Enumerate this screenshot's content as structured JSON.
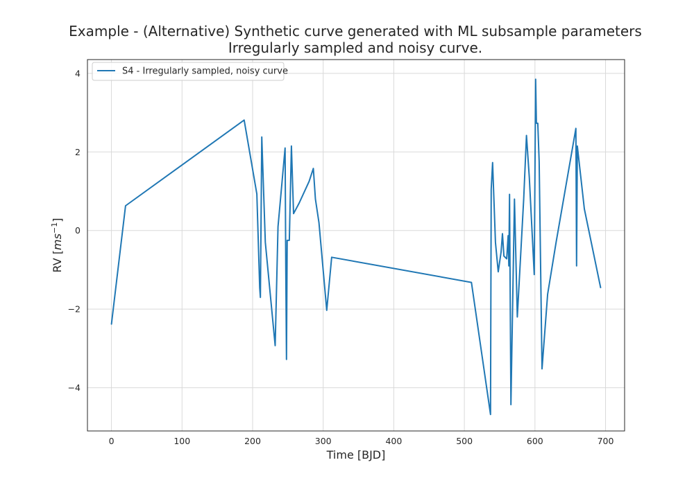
{
  "chart_data": {
    "type": "line",
    "title_line1": "Example - (Alternative) Synthetic curve generated with ML subsample parameters",
    "title_line2": "Irregularly sampled and noisy curve.",
    "xlabel": "Time [BJD]",
    "ylabel_prefix": "RV [",
    "ylabel_unit": "ms",
    "ylabel_exp": "−1",
    "ylabel_suffix": "]",
    "xlim": [
      -34,
      727
    ],
    "ylim": [
      -5.1,
      4.35
    ],
    "xticks": [
      0,
      100,
      200,
      300,
      400,
      500,
      600,
      700
    ],
    "xtick_labels": [
      "0",
      "100",
      "200",
      "300",
      "400",
      "500",
      "600",
      "700"
    ],
    "yticks": [
      -4,
      -2,
      0,
      2,
      4
    ],
    "ytick_labels": [
      "−4",
      "−2",
      "0",
      "2",
      "4"
    ],
    "grid": true,
    "legend_position": "top-left",
    "series": [
      {
        "name": "S4 - Irregularly sampled, noisy curve",
        "color": "#1f77b4",
        "x": [
          0,
          20,
          188,
          206,
          210,
          211,
          213,
          218,
          232,
          236,
          246,
          247,
          248,
          249,
          252,
          255,
          258,
          266,
          280,
          286,
          289,
          294,
          305,
          312,
          510,
          537,
          538,
          540,
          544,
          548,
          552,
          554,
          556,
          560,
          562,
          563,
          564,
          566,
          571,
          575,
          584,
          588,
          592,
          599,
          601,
          602,
          604,
          606,
          610,
          618,
          630,
          658,
          659,
          660,
          670,
          693
        ],
        "y": [
          -2.38,
          0.63,
          2.81,
          0.93,
          -1.45,
          -1.7,
          2.38,
          -0.3,
          -2.93,
          0.1,
          2.1,
          -1.0,
          -3.28,
          -0.25,
          -0.25,
          2.15,
          0.43,
          0.7,
          1.25,
          1.58,
          0.8,
          0.2,
          -2.03,
          -0.68,
          -1.32,
          -4.68,
          1.05,
          1.73,
          -0.3,
          -1.05,
          -0.55,
          -0.08,
          -0.65,
          -0.72,
          -0.13,
          -0.9,
          0.92,
          -4.43,
          0.8,
          -2.2,
          0.8,
          2.42,
          1.35,
          -1.12,
          3.85,
          2.73,
          2.73,
          1.75,
          -3.52,
          -1.62,
          -0.3,
          2.6,
          -0.9,
          2.15,
          0.55,
          -1.45
        ]
      }
    ]
  }
}
